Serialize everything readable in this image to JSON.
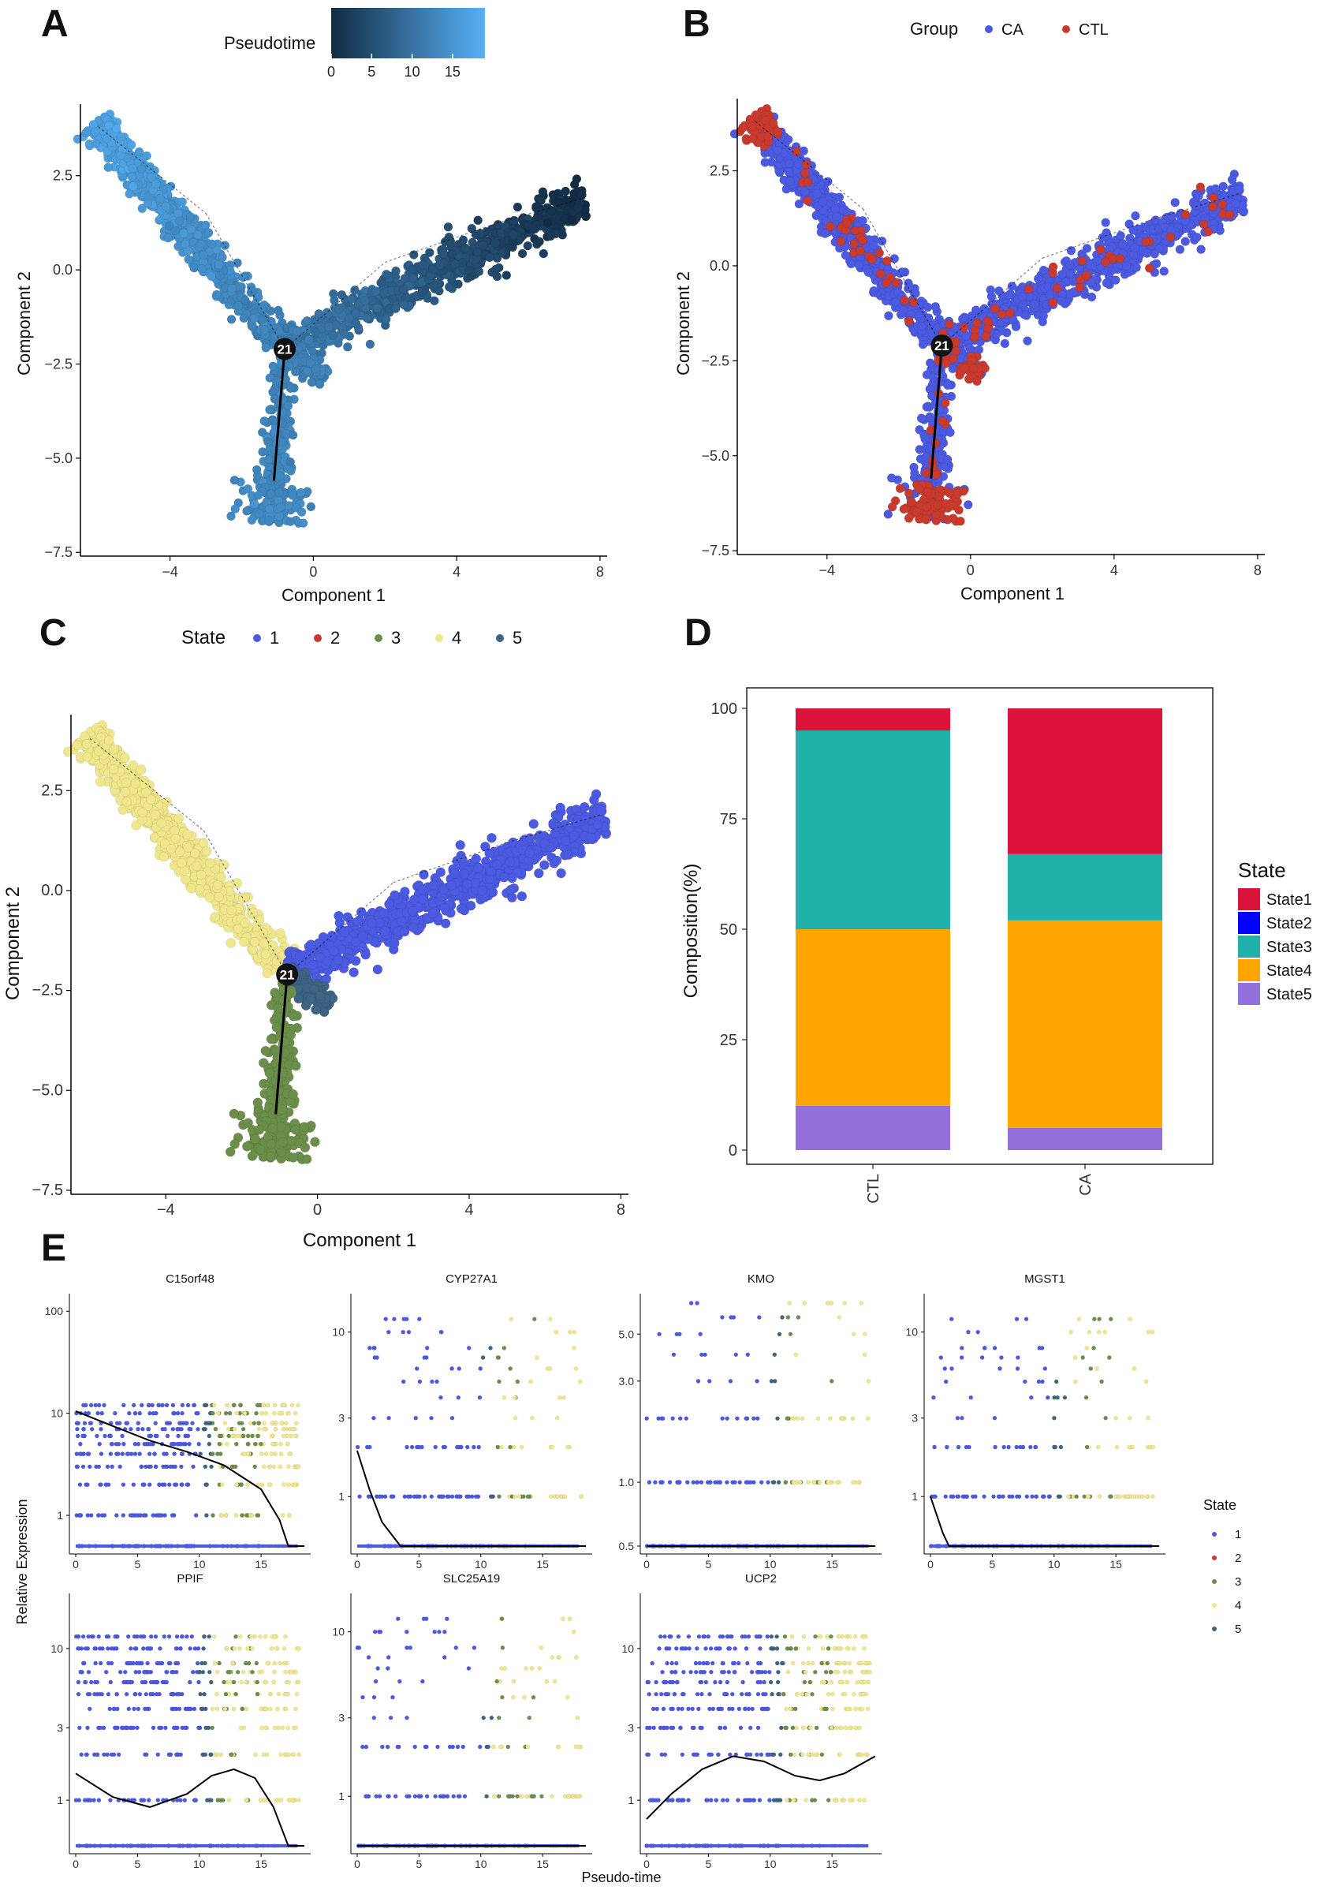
{
  "figure": {
    "panels": [
      {
        "id": "A",
        "letter": "A"
      },
      {
        "id": "B",
        "letter": "B"
      },
      {
        "id": "C",
        "letter": "C"
      },
      {
        "id": "D",
        "letter": "D"
      },
      {
        "id": "E",
        "letter": "E"
      }
    ]
  },
  "chart_data": [
    {
      "panel": "A",
      "type": "scatter",
      "title": "",
      "xlabel": "Component 1",
      "ylabel": "Component 2",
      "xlim": [
        -6.5,
        8.2
      ],
      "ylim": [
        -7.6,
        4.4
      ],
      "xticks": [
        -4,
        0,
        4,
        8
      ],
      "xtick_labels": [
        "−4",
        "0",
        "4",
        "8"
      ],
      "yticks": [
        2.5,
        0.0,
        -2.5,
        -5.0,
        -7.5
      ],
      "ytick_labels": [
        "2.5",
        "0.0",
        "−2.5",
        "−5.0",
        "−7.5"
      ],
      "legend": {
        "title": "Pseudotime",
        "type": "colorbar",
        "ticks": [
          "0",
          "5",
          "10",
          "15"
        ],
        "range": [
          0,
          19
        ],
        "low_color": "#132b43",
        "high_color": "#56b1f7",
        "position": "top"
      },
      "branch_label": "21",
      "branch_point": [
        -0.8,
        -2.1
      ],
      "color_by": "pseudotime"
    },
    {
      "panel": "B",
      "type": "scatter",
      "xlabel": "Component 1",
      "ylabel": "Component 2",
      "xlim": [
        -6.5,
        8.2
      ],
      "ylim": [
        -7.6,
        4.4
      ],
      "xticks": [
        -4,
        0,
        4,
        8
      ],
      "xtick_labels": [
        "−4",
        "0",
        "4",
        "8"
      ],
      "yticks": [
        2.5,
        0.0,
        -2.5,
        -5.0,
        -7.5
      ],
      "ytick_labels": [
        "2.5",
        "0.0",
        "−2.5",
        "−5.0",
        "−7.5"
      ],
      "legend": {
        "title": "Group",
        "entries": [
          {
            "label": "CA",
            "color": "#4b5ae0"
          },
          {
            "label": "CTL",
            "color": "#c93a2e"
          }
        ],
        "position": "top"
      },
      "branch_label": "21",
      "branch_point": [
        -0.8,
        -2.1
      ],
      "color_by": "group"
    },
    {
      "panel": "C",
      "type": "scatter",
      "xlabel": "Component 1",
      "ylabel": "Component 2",
      "xlim": [
        -6.5,
        8.2
      ],
      "ylim": [
        -7.6,
        4.4
      ],
      "xticks": [
        -4,
        0,
        4,
        8
      ],
      "xtick_labels": [
        "−4",
        "0",
        "4",
        "8"
      ],
      "yticks": [
        2.5,
        0.0,
        -2.5,
        -5.0,
        -7.5
      ],
      "ytick_labels": [
        "2.5",
        "0.0",
        "−2.5",
        "−5.0",
        "−7.5"
      ],
      "legend": {
        "title": "State",
        "entries": [
          {
            "label": "1",
            "color": "#4b5ae0"
          },
          {
            "label": "2",
            "color": "#c93a2e"
          },
          {
            "label": "3",
            "color": "#6b8e4a"
          },
          {
            "label": "4",
            "color": "#f0e68c"
          },
          {
            "label": "5",
            "color": "#3e6383"
          }
        ],
        "position": "top"
      },
      "branch_label": "21",
      "branch_point": [
        -0.8,
        -2.1
      ],
      "color_by": "state"
    },
    {
      "panel": "D",
      "type": "bar",
      "stacked": true,
      "categories": [
        "CTL",
        "CA"
      ],
      "series": [
        {
          "name": "State1",
          "color": "#dc143c",
          "values": [
            5,
            33
          ]
        },
        {
          "name": "State2",
          "color": "#0000ff",
          "values": [
            0,
            0
          ]
        },
        {
          "name": "State3",
          "color": "#20b2aa",
          "values": [
            45,
            15
          ]
        },
        {
          "name": "State4",
          "color": "#ffa500",
          "values": [
            40,
            47
          ]
        },
        {
          "name": "State5",
          "color": "#9370db",
          "values": [
            10,
            5
          ]
        }
      ],
      "xlabel": "",
      "ylabel": "Composition(%)",
      "ylim": [
        0,
        100
      ],
      "yticks": [
        0,
        25,
        50,
        75,
        100
      ],
      "legend": {
        "title": "State",
        "position": "right"
      }
    },
    {
      "panel": "E",
      "type": "scatter",
      "xlabel": "Pseudo-time",
      "ylabel": "Relative Expression",
      "yscale": "log10",
      "legend": {
        "title": "State",
        "entries": [
          {
            "label": "1",
            "color": "#4b5ae0"
          },
          {
            "label": "2",
            "color": "#c93a2e"
          },
          {
            "label": "3",
            "color": "#6b8e4a"
          },
          {
            "label": "4",
            "color": "#f0e68c"
          },
          {
            "label": "5",
            "color": "#3e6383"
          }
        ],
        "position": "right"
      },
      "facets": [
        {
          "gene": "C15orf48",
          "xlim": [
            0,
            18.5
          ],
          "xticks": [
            0,
            5,
            10,
            15
          ],
          "ylim": [
            0.5,
            120
          ],
          "yticks": [
            1,
            10,
            100
          ],
          "ytick_labels": [
            "1",
            "10",
            "100"
          ],
          "trend": [
            [
              0,
              10.5
            ],
            [
              3,
              7.5
            ],
            [
              6,
              5.4
            ],
            [
              9,
              4.2
            ],
            [
              12,
              3.1
            ],
            [
              15,
              1.8
            ],
            [
              16.5,
              0.9
            ],
            [
              17.2,
              0.5
            ],
            [
              18.5,
              0.5
            ]
          ]
        },
        {
          "gene": "CYP27A1",
          "xlim": [
            0,
            18.5
          ],
          "xticks": [
            0,
            5,
            10,
            15
          ],
          "ylim": [
            0.5,
            15
          ],
          "yticks": [
            1,
            3,
            10
          ],
          "ytick_labels": [
            "1",
            "3",
            "10"
          ],
          "trend": [
            [
              0,
              1.9
            ],
            [
              1,
              1.1
            ],
            [
              2,
              0.7
            ],
            [
              3.5,
              0.5
            ],
            [
              18.5,
              0.5
            ]
          ]
        },
        {
          "gene": "KMO",
          "xlim": [
            0,
            18.5
          ],
          "xticks": [
            0,
            5,
            10,
            15
          ],
          "ylim": [
            0.5,
            7
          ],
          "yticks": [
            0.5,
            1,
            3,
            5
          ],
          "ytick_labels": [
            "0.5",
            "1.0",
            "3.0",
            "5.0"
          ],
          "trend": [
            [
              0,
              0.5
            ],
            [
              18.5,
              0.5
            ]
          ]
        },
        {
          "gene": "MGST1",
          "xlim": [
            0,
            18.5
          ],
          "xticks": [
            0,
            5,
            10,
            15
          ],
          "ylim": [
            0.5,
            15
          ],
          "yticks": [
            1,
            3,
            10
          ],
          "ytick_labels": [
            "1",
            "3",
            "10"
          ],
          "trend": [
            [
              0,
              1
            ],
            [
              1,
              0.6
            ],
            [
              1.5,
              0.5
            ],
            [
              18.5,
              0.5
            ]
          ]
        },
        {
          "gene": "PPIF",
          "xlim": [
            0,
            18.5
          ],
          "xticks": [
            0,
            5,
            10,
            15
          ],
          "ylim": [
            0.5,
            20
          ],
          "yticks": [
            1,
            3,
            10
          ],
          "ytick_labels": [
            "1",
            "3",
            "10"
          ],
          "trend": [
            [
              0,
              1.5
            ],
            [
              3,
              1.05
            ],
            [
              6,
              0.9
            ],
            [
              9,
              1.1
            ],
            [
              11,
              1.45
            ],
            [
              12.8,
              1.6
            ],
            [
              14.5,
              1.4
            ],
            [
              16,
              0.9
            ],
            [
              17.2,
              0.5
            ],
            [
              18.5,
              0.5
            ]
          ]
        },
        {
          "gene": "SLC25A19",
          "xlim": [
            0,
            18.5
          ],
          "xticks": [
            0,
            5,
            10,
            15
          ],
          "ylim": [
            0.5,
            15
          ],
          "yticks": [
            1,
            3,
            10
          ],
          "ytick_labels": [
            "1",
            "3",
            "10"
          ],
          "trend": [
            [
              0,
              0.5
            ],
            [
              18.5,
              0.5
            ]
          ]
        },
        {
          "gene": "UCP2",
          "xlim": [
            0,
            18.5
          ],
          "xticks": [
            0,
            5,
            10,
            15
          ],
          "ylim": [
            0.5,
            20
          ],
          "yticks": [
            1,
            3,
            10
          ],
          "ytick_labels": [
            "1",
            "3",
            "10"
          ],
          "trend": [
            [
              0,
              0.75
            ],
            [
              2,
              1.1
            ],
            [
              4.5,
              1.6
            ],
            [
              7,
              1.95
            ],
            [
              9.5,
              1.8
            ],
            [
              12,
              1.45
            ],
            [
              14,
              1.35
            ],
            [
              16,
              1.5
            ],
            [
              18.5,
              1.95
            ]
          ]
        }
      ]
    }
  ]
}
